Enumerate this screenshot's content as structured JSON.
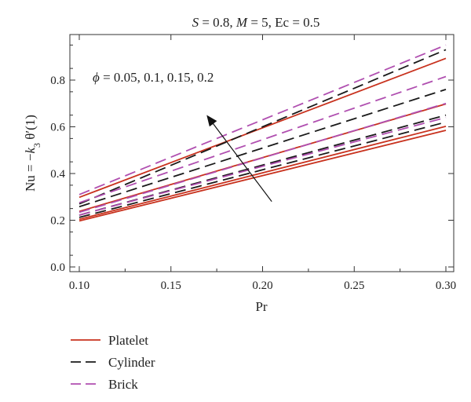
{
  "chart_data": {
    "type": "line",
    "title": "S = 0.8, M = 5, Ec = 0.5",
    "title_parts": [
      "S",
      " = 0.8, ",
      "M",
      " = 5, Ec = 0.5"
    ],
    "xlabel": "Pr",
    "ylabel_parts": [
      "Nu = −",
      "k",
      "3",
      " θ′(1)"
    ],
    "annotation": "ϕ = 0.05, 0.1, 0.15, 0.2",
    "annotation_parts": [
      "ϕ",
      " = 0.05, 0.1, 0.15, 0.2"
    ],
    "xlim": [
      0.1,
      0.3
    ],
    "ylim": [
      0.0,
      0.95
    ],
    "xticks": [
      "0.10",
      "0.15",
      "0.20",
      "0.25",
      "0.30"
    ],
    "yticks": [
      "0.0",
      "0.2",
      "0.4",
      "0.6",
      "0.8"
    ],
    "x": [
      0.1,
      0.3
    ],
    "series": [
      {
        "name": "Platelet",
        "color": "#c8321e",
        "dash": "solid",
        "phi": 0.05,
        "values": [
          0.197,
          0.585
        ]
      },
      {
        "name": "Platelet",
        "color": "#c8321e",
        "dash": "solid",
        "phi": 0.1,
        "values": [
          0.204,
          0.602
        ]
      },
      {
        "name": "Platelet",
        "color": "#c8321e",
        "dash": "solid",
        "phi": 0.15,
        "values": [
          0.238,
          0.698
        ]
      },
      {
        "name": "Platelet",
        "color": "#c8321e",
        "dash": "solid",
        "phi": 0.2,
        "values": [
          0.298,
          0.893
        ]
      },
      {
        "name": "Cylinder",
        "color": "#1a1a1a",
        "dash": "dashed",
        "phi": 0.05,
        "values": [
          0.212,
          0.62
        ]
      },
      {
        "name": "Cylinder",
        "color": "#1a1a1a",
        "dash": "dashed",
        "phi": 0.1,
        "values": [
          0.222,
          0.65
        ]
      },
      {
        "name": "Cylinder",
        "color": "#1a1a1a",
        "dash": "dashed",
        "phi": 0.15,
        "values": [
          0.258,
          0.76
        ]
      },
      {
        "name": "Cylinder",
        "color": "#1a1a1a",
        "dash": "dashed",
        "phi": 0.2,
        "values": [
          0.27,
          0.93
        ]
      },
      {
        "name": "Brick",
        "color": "#b04fb0",
        "dash": "dashed",
        "phi": 0.05,
        "values": [
          0.222,
          0.64
        ]
      },
      {
        "name": "Brick",
        "color": "#b04fb0",
        "dash": "dashed",
        "phi": 0.1,
        "values": [
          0.234,
          0.7
        ]
      },
      {
        "name": "Brick",
        "color": "#b04fb0",
        "dash": "dashed",
        "phi": 0.15,
        "values": [
          0.275,
          0.815
        ]
      },
      {
        "name": "Brick",
        "color": "#b04fb0",
        "dash": "dashed",
        "phi": 0.2,
        "values": [
          0.31,
          0.95
        ]
      }
    ],
    "arrow": {
      "from": [
        0.205,
        0.28
      ],
      "to": [
        0.17,
        0.645
      ]
    },
    "legend": [
      {
        "name": "Platelet",
        "color": "#c8321e",
        "dash": "solid"
      },
      {
        "name": "Cylinder",
        "color": "#1a1a1a",
        "dash": "dashed"
      },
      {
        "name": "Brick",
        "color": "#b04fb0",
        "dash": "dashed"
      }
    ],
    "legend_position": "bottom-left",
    "grid": false
  }
}
